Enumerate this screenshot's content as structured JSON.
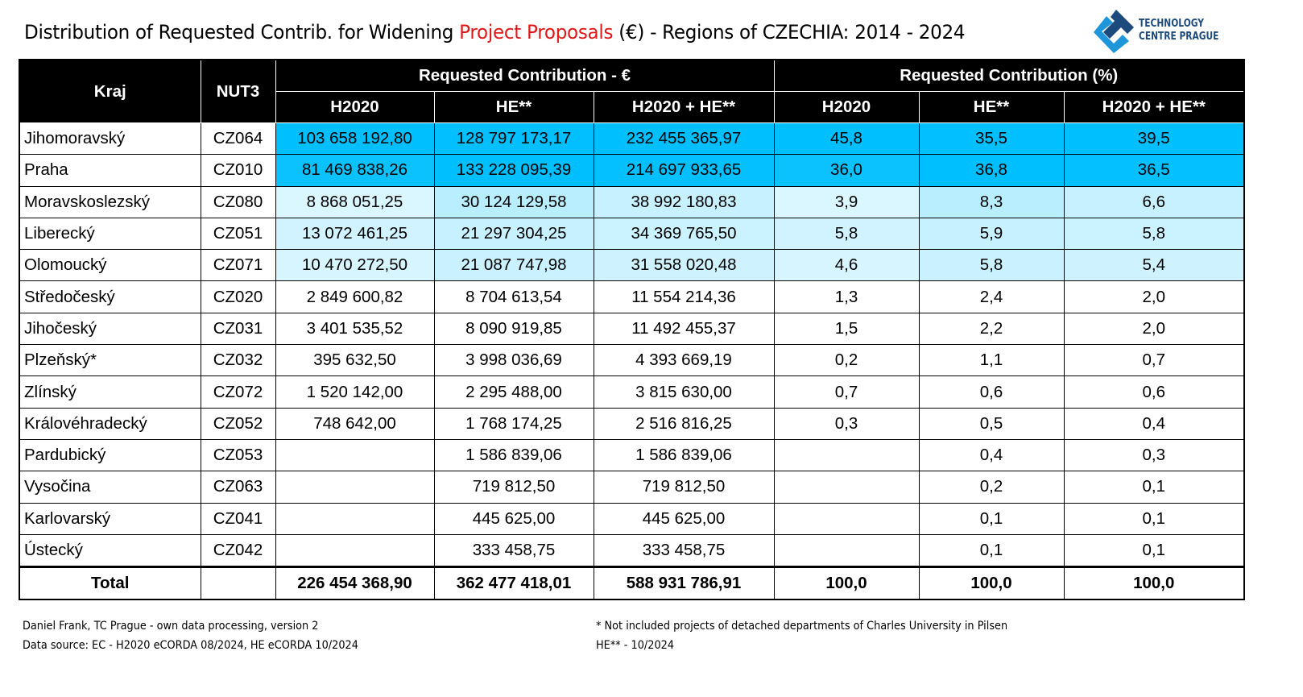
{
  "title": {
    "part1": "Distribution of Requested Contrib. for Widening ",
    "highlight": "Project Proposals",
    "part2": " (€) - Regions of CZECHIA: 2014 - 2024",
    "highlight_color": "#e01818"
  },
  "logo": {
    "line1": "TECHNOLOGY",
    "line2": "CENTRE PRAGUE",
    "colors": [
      "#1c4a7c",
      "#1f96d9"
    ]
  },
  "table": {
    "headers": {
      "kraj": "Kraj",
      "nut3": "NUT3",
      "group_eur": "Requested Contribution - €",
      "group_pct": "Requested Contribution (%)",
      "sub": [
        "H2020",
        "HE**",
        "H2020 + HE**",
        "H2020",
        "HE**",
        "H2020 + HE**"
      ]
    },
    "shade_color": "#00BFFF",
    "rows": [
      {
        "kraj": "Jihomoravský",
        "nut3": "CZ064",
        "eur": [
          "103 658 192,80",
          "128 797 173,17",
          "232 455 365,97"
        ],
        "pct": [
          "45,8",
          "35,5",
          "39,5"
        ]
      },
      {
        "kraj": "Praha",
        "nut3": "CZ010",
        "eur": [
          "81 469 838,26",
          "133 228 095,39",
          "214 697 933,65"
        ],
        "pct": [
          "36,0",
          "36,8",
          "36,5"
        ]
      },
      {
        "kraj": "Moravskoslezský",
        "nut3": "CZ080",
        "eur": [
          "8 868 051,25",
          "30 124 129,58",
          "38 992 180,83"
        ],
        "pct": [
          "3,9",
          "8,3",
          "6,6"
        ]
      },
      {
        "kraj": "Liberecký",
        "nut3": "CZ051",
        "eur": [
          "13 072 461,25",
          "21 297 304,25",
          "34 369 765,50"
        ],
        "pct": [
          "5,8",
          "5,9",
          "5,8"
        ]
      },
      {
        "kraj": "Olomoucký",
        "nut3": "CZ071",
        "eur": [
          "10 470 272,50",
          "21 087 747,98",
          "31 558 020,48"
        ],
        "pct": [
          "4,6",
          "5,8",
          "5,4"
        ]
      },
      {
        "kraj": "Středočeský",
        "nut3": "CZ020",
        "eur": [
          "2 849 600,82",
          "8 704 613,54",
          "11 554 214,36"
        ],
        "pct": [
          "1,3",
          "2,4",
          "2,0"
        ]
      },
      {
        "kraj": "Jihočeský",
        "nut3": "CZ031",
        "eur": [
          "3 401 535,52",
          "8 090 919,85",
          "11 492 455,37"
        ],
        "pct": [
          "1,5",
          "2,2",
          "2,0"
        ]
      },
      {
        "kraj": "Plzeňský*",
        "nut3": "CZ032",
        "eur": [
          "395 632,50",
          "3 998 036,69",
          "4 393 669,19"
        ],
        "pct": [
          "0,2",
          "1,1",
          "0,7"
        ]
      },
      {
        "kraj": "Zlínský",
        "nut3": "CZ072",
        "eur": [
          "1 520 142,00",
          "2 295 488,00",
          "3 815 630,00"
        ],
        "pct": [
          "0,7",
          "0,6",
          "0,6"
        ]
      },
      {
        "kraj": "Královéhradecký",
        "nut3": "CZ052",
        "eur": [
          "748 642,00",
          "1 768 174,25",
          "2 516 816,25"
        ],
        "pct": [
          "0,3",
          "0,5",
          "0,4"
        ]
      },
      {
        "kraj": "Pardubický",
        "nut3": "CZ053",
        "eur": [
          "",
          "1 586 839,06",
          "1 586 839,06"
        ],
        "pct": [
          "",
          "0,4",
          "0,3"
        ]
      },
      {
        "kraj": "Vysočina",
        "nut3": "CZ063",
        "eur": [
          "",
          "719 812,50",
          "719 812,50"
        ],
        "pct": [
          "",
          "0,2",
          "0,1"
        ]
      },
      {
        "kraj": "Karlovarský",
        "nut3": "CZ041",
        "eur": [
          "",
          "445 625,00",
          "445 625,00"
        ],
        "pct": [
          "",
          "0,1",
          "0,1"
        ]
      },
      {
        "kraj": "Ústecký",
        "nut3": "CZ042",
        "eur": [
          "",
          "333 458,75",
          "333 458,75"
        ],
        "pct": [
          "",
          "0,1",
          "0,1"
        ]
      }
    ],
    "total": {
      "kraj": "Total",
      "nut3": "",
      "eur": [
        "226 454 368,90",
        "362 477 418,01",
        "588 931 786,91"
      ],
      "pct": [
        "100,0",
        "100,0",
        "100,0"
      ]
    }
  },
  "footer": {
    "author": "Daniel Frank, TC Prague - own data processing, version 2",
    "source": "Data source: EC - H2020 eCORDA 08/2024, HE eCORDA 10/2024",
    "note1": "* Not included projects of detached departments of Charles University in Pilsen",
    "note2": "HE** - 10/2024"
  }
}
